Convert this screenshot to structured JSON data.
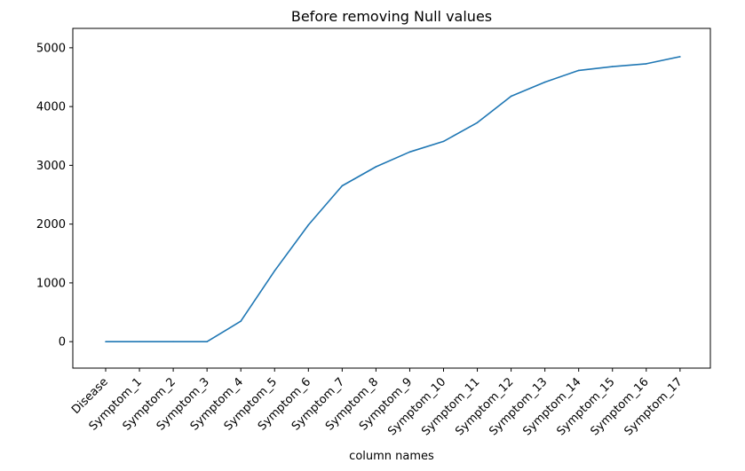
{
  "chart_data": {
    "type": "line",
    "title": "Before removing Null values",
    "xlabel": "column names",
    "ylabel": "",
    "categories": [
      "Disease",
      "Symptom_1",
      "Symptom_2",
      "Symptom_3",
      "Symptom_4",
      "Symptom_5",
      "Symptom_6",
      "Symptom_7",
      "Symptom_8",
      "Symptom_9",
      "Symptom_10",
      "Symptom_11",
      "Symptom_12",
      "Symptom_13",
      "Symptom_14",
      "Symptom_15",
      "Symptom_16",
      "Symptom_17"
    ],
    "series": [
      {
        "values": [
          0,
          0,
          0,
          0,
          348,
          1206,
          1986,
          2652,
          2976,
          3228,
          3408,
          3726,
          4176,
          4416,
          4614,
          4680,
          4728,
          4848
        ],
        "color": "#1f77b4"
      }
    ],
    "ylim": [
      -450,
      5330
    ],
    "yticks": [
      0,
      1000,
      2000,
      3000,
      4000,
      5000
    ],
    "grid": false,
    "legend": "none"
  }
}
